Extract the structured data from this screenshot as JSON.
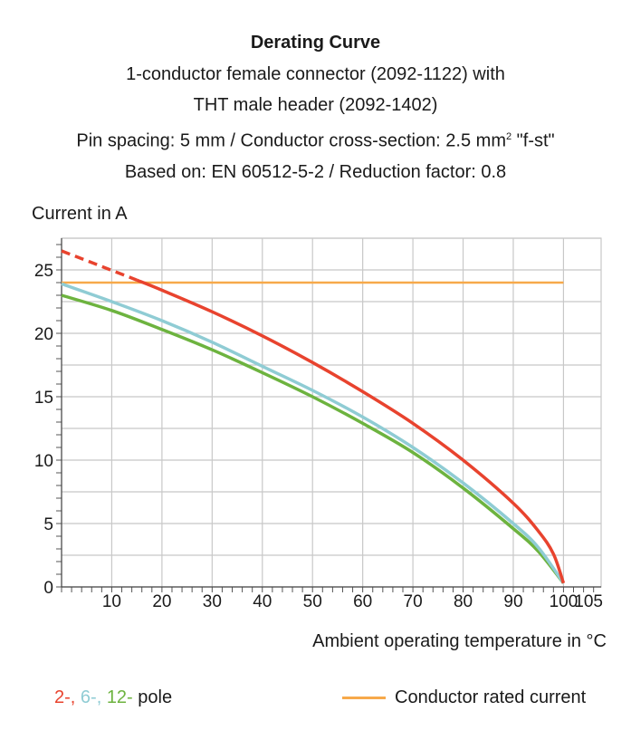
{
  "header": {
    "title": "Derating Curve",
    "line1": "1-conductor female connector (2092-1122) with",
    "line2": "THT male header (2092-1402)",
    "line3_pre": "Pin spacing: 5 mm / Conductor cross-section: 2.5 mm",
    "line3_sup": "2",
    "line3_post": " \"f-st\"",
    "line4": "Based on: EN 60512-5-2 / Reduction factor: 0.8"
  },
  "legend": {
    "pole_2": "2-,",
    "pole_6": "6-,",
    "pole_12": "12-",
    "pole_suffix": "pole",
    "rated_current": "Conductor rated current"
  },
  "chart_data": {
    "type": "line",
    "ylabel": "Current in A",
    "xlabel": "Ambient operating temperature in °C",
    "xlim": [
      0,
      107.5
    ],
    "ylim": [
      0,
      27.5
    ],
    "xticks": [
      10,
      20,
      30,
      40,
      50,
      60,
      70,
      80,
      90,
      100,
      105
    ],
    "yticks": [
      0,
      5,
      10,
      15,
      20,
      25
    ],
    "grid": true,
    "series": [
      {
        "name": "2-pole",
        "color": "#e8432e",
        "x": [
          0,
          15,
          20,
          30,
          40,
          50,
          60,
          70,
          80,
          90,
          95,
          98,
          100
        ],
        "y": [
          26.5,
          24.2,
          23.4,
          21.7,
          19.8,
          17.7,
          15.4,
          12.9,
          10.0,
          6.6,
          4.4,
          2.6,
          0.3
        ],
        "dashed_until_x": 15
      },
      {
        "name": "6-pole",
        "color": "#8fccd4",
        "x": [
          0,
          10,
          20,
          30,
          40,
          50,
          60,
          70,
          80,
          90,
          95,
          100
        ],
        "y": [
          23.9,
          22.5,
          21.0,
          19.3,
          17.4,
          15.5,
          13.4,
          11.0,
          8.2,
          5.0,
          3.1,
          0.3
        ]
      },
      {
        "name": "12-pole",
        "color": "#6db33f",
        "x": [
          0,
          10,
          20,
          30,
          40,
          50,
          60,
          70,
          80,
          90,
          95,
          100
        ],
        "y": [
          23.0,
          21.8,
          20.3,
          18.7,
          16.9,
          15.0,
          12.9,
          10.6,
          7.8,
          4.6,
          2.8,
          0.3
        ]
      },
      {
        "name": "Conductor rated current",
        "color": "#f7a94a",
        "x": [
          0,
          100
        ],
        "y": [
          24,
          24
        ]
      }
    ]
  }
}
